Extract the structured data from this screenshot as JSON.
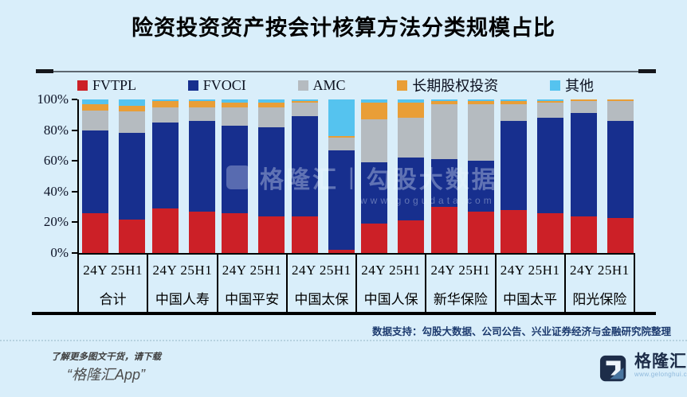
{
  "title": "险资投资资产按会计核算方法分类规模占比",
  "chart_data": {
    "type": "bar",
    "stacked": true,
    "value_unit": "percent",
    "ylim": [
      0,
      100
    ],
    "y_ticks": [
      "0%",
      "20%",
      "40%",
      "60%",
      "80%",
      "100%"
    ],
    "grid": false,
    "legend_position": "top",
    "periods": [
      "24Y",
      "25H1"
    ],
    "groups": [
      "合计",
      "中国人寿",
      "中国平安",
      "中国太保",
      "中国人保",
      "新华保险",
      "中国太平",
      "阳光保险"
    ],
    "categories": [
      "合计 24Y",
      "合计 25H1",
      "中国人寿 24Y",
      "中国人寿 25H1",
      "中国平安 24Y",
      "中国平安 25H1",
      "中国太保 24Y",
      "中国太保 25H1",
      "中国人保 24Y",
      "中国人保 25H1",
      "新华保险 24Y",
      "新华保险 25H1",
      "中国太平 24Y",
      "中国太平 25H1",
      "阳光保险 24Y",
      "阳光保险 25H1"
    ],
    "series": [
      {
        "name": "FVTPL",
        "color": "#cc2027",
        "values": [
          26,
          22,
          29,
          27,
          26,
          24,
          24,
          2,
          19,
          21,
          30,
          27,
          28,
          26,
          24,
          23
        ]
      },
      {
        "name": "FVOCI",
        "color": "#172f8e",
        "values": [
          54,
          56,
          56,
          59,
          57,
          58,
          65,
          65,
          40,
          41,
          31,
          33,
          58,
          62,
          67,
          63
        ]
      },
      {
        "name": "AMC",
        "color": "#b5bbc0",
        "values": [
          13,
          14,
          10,
          9,
          12,
          13,
          9,
          8,
          28,
          26,
          36,
          37,
          11,
          10,
          8,
          13
        ]
      },
      {
        "name": "长期股权投资",
        "color": "#e99e37",
        "values": [
          4,
          4,
          4,
          4,
          3,
          3,
          1,
          1,
          11,
          10,
          2,
          2,
          2,
          1,
          1,
          1
        ]
      },
      {
        "name": "其他",
        "color": "#55c3ef",
        "values": [
          3,
          4,
          1,
          1,
          2,
          2,
          1,
          24,
          2,
          2,
          1,
          1,
          1,
          1,
          0,
          0
        ]
      }
    ]
  },
  "watermark": {
    "brand": "格隆汇",
    "separator": "|",
    "product": "勾股大数据",
    "url": "www.gogudata.com"
  },
  "source_note": "数据支持：勾股大数据、公司公告、兴业证券经济与金融研究院整理",
  "footer": {
    "promo_line1": "了解更多图文干货，请下载",
    "promo_line2": "“格隆汇App”",
    "brand": "格隆汇",
    "brand_url": "www.gelonghui.com"
  },
  "colors": {
    "page_background": "#d9eefa",
    "axis": "#000000",
    "source_note_text": "#1c3a6e",
    "brand_navy": "#1d2d49",
    "watermark_text": "rgba(238,247,255,0.34)"
  }
}
